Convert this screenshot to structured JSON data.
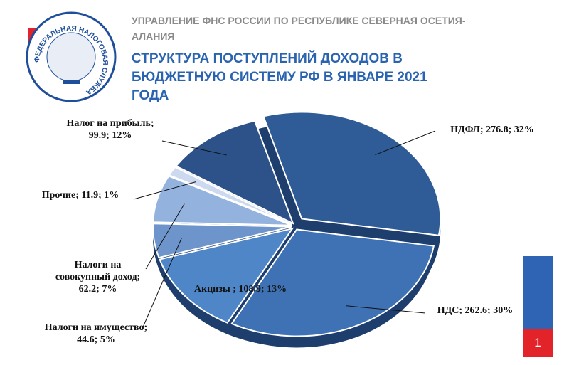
{
  "logo_text": "ФЕДЕРАЛЬНАЯ НАЛОГОВАЯ СЛУЖБА",
  "page_number": 1,
  "chart_data": {
    "type": "pie",
    "subtitle": "УПРАВЛЕНИЕ  ФНС РОССИИ ПО РЕСПУБЛИКЕ  СЕВЕРНАЯ ОСЕТИЯ-АЛАНИЯ",
    "title": "СТРУКТУРА  ПОСТУПЛЕНИЙ  ДОХОДОВ  В БЮДЖЕТНУЮ СИСТЕМУ РФ В  ЯНВАРЕ 2021  ГОДА",
    "categories": [
      "НДФЛ",
      "НДС",
      "Акцизы",
      "Налоги на имущество",
      "Налоги на совокупный доход",
      "Прочие",
      "Налог на прибыль"
    ],
    "values": [
      276.8,
      262.6,
      108.9,
      44.6,
      62.2,
      11.9,
      99.9
    ],
    "value_labels": [
      "НДФЛ; 276.8; 32%",
      "НДС; 262.6; 30%",
      "Акцизы ; 108.9; 13%",
      "Налоги на имущество; 44.6; 5%",
      "Налоги на совокупный доход; 62.2; 7%",
      "Прочие; 11.9; 1%",
      "Налог на прибыль; 99.9; 12%"
    ],
    "colors": [
      "#2f5b96",
      "#3f72b4",
      "#4f86c8",
      "#6d95cb",
      "#93b3de",
      "#cdd9ee",
      "#2d5189"
    ]
  }
}
